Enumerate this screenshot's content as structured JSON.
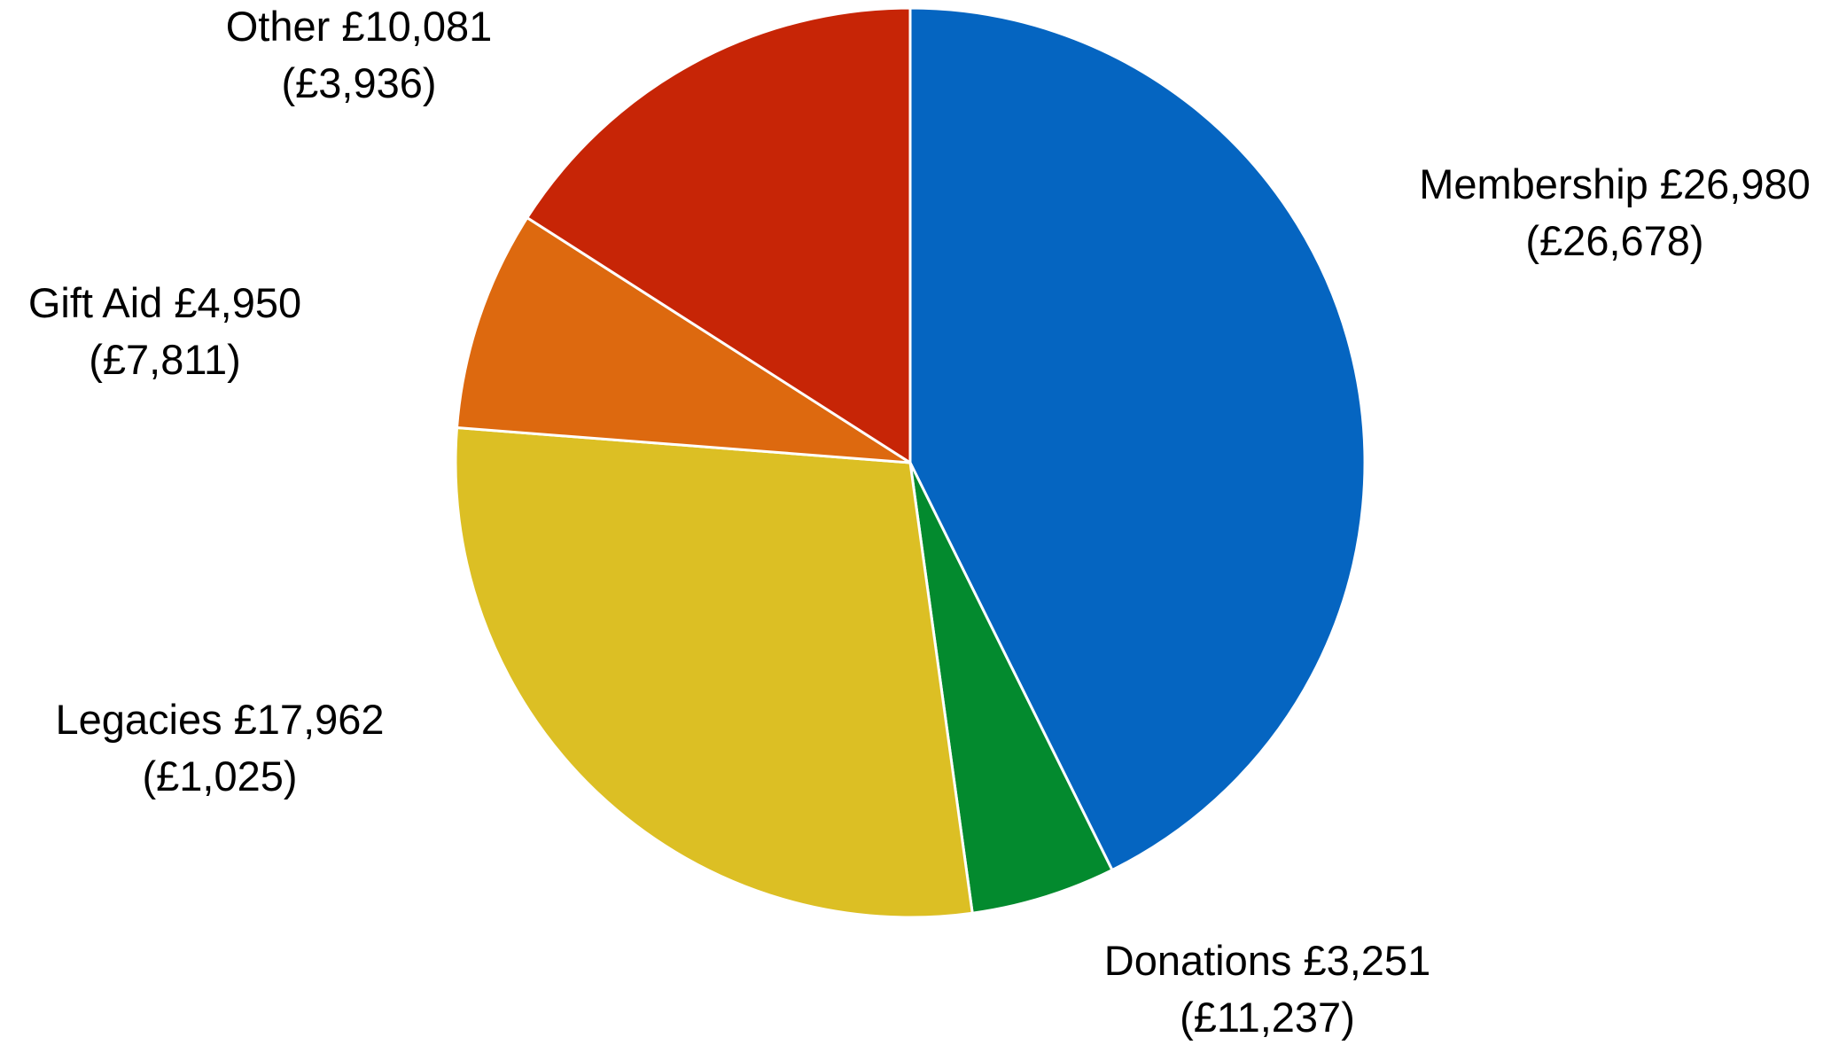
{
  "chart_data": {
    "type": "pie",
    "title": "",
    "start_angle_deg": 0,
    "direction": "clockwise",
    "slices": [
      {
        "name": "Membership",
        "value": 26980,
        "value_label": "£26,980",
        "prior_label": "(£26,678)",
        "color": "#0565C1"
      },
      {
        "name": "Donations",
        "value": 3251,
        "value_label": "£3,251",
        "prior_label": "(£11,237)",
        "color": "#038A2E"
      },
      {
        "name": "Legacies",
        "value": 17962,
        "value_label": "£17,962",
        "prior_label": "(£1,025)",
        "color": "#DCBF24"
      },
      {
        "name": "Gift Aid",
        "value": 4950,
        "value_label": "£4,950",
        "prior_label": "(£7,811)",
        "color": "#DD690F"
      },
      {
        "name": "Other",
        "value": 10081,
        "value_label": "£10,081",
        "prior_label": "(£3,936)",
        "color": "#C72506"
      }
    ]
  }
}
